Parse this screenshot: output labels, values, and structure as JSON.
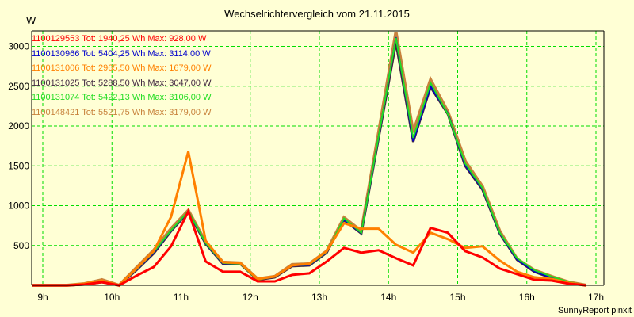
{
  "header": {
    "title": "Wechselrichtervergleich vom 21.11.2015",
    "y_unit": "W"
  },
  "footer": {
    "credit": "SunnyReport pinxit"
  },
  "colors": {
    "background": "#ffffd5",
    "grid": "#00dd00",
    "axis": "#000000"
  },
  "legend": [
    {
      "label": "1100129553 Tot: 1940,25 Wh Max: 928,00 W",
      "color": "#ff0000"
    },
    {
      "label": "1100130966 Tot: 5404,25 Wh Max: 3114,00 W",
      "color": "#0000cc"
    },
    {
      "label": "1100131006 Tot: 2965,50 Wh Max: 1679,00 W",
      "color": "#ff8000"
    },
    {
      "label": "1100131025 Tot: 5288,50 Wh Max: 3047,00 W",
      "color": "#402840"
    },
    {
      "label": "1100131074 Tot: 5422,13 Wh Max: 3106,00 W",
      "color": "#22dd22"
    },
    {
      "label": "1100148421 Tot: 5521,75 Wh Max: 3179,00 W",
      "color": "#c8823c"
    }
  ],
  "chart_data": {
    "type": "line",
    "title": "Wechselrichtervergleich vom 21.11.2015",
    "xlabel": "",
    "ylabel": "W",
    "x_ticks": [
      "9h",
      "10h",
      "11h",
      "12h",
      "13h",
      "14h",
      "15h",
      "16h",
      "17h"
    ],
    "y_ticks": [
      500,
      1000,
      1500,
      2000,
      2500,
      3000
    ],
    "ylim": [
      0,
      3200
    ],
    "xlim_hours": [
      8.87,
      17.0
    ],
    "grid": true,
    "legend_position": "top-left inside",
    "x": [
      "9:07",
      "9:22",
      "9:37",
      "9:52",
      "10:07",
      "10:22",
      "10:37",
      "10:52",
      "11:07",
      "11:22",
      "11:37",
      "11:52",
      "12:07",
      "12:22",
      "12:37",
      "12:52",
      "13:07",
      "13:22",
      "13:37",
      "13:52",
      "14:07",
      "14:22",
      "14:37",
      "14:52",
      "15:07",
      "15:22",
      "15:37",
      "15:52",
      "16:07",
      "16:22",
      "16:37",
      "16:52"
    ],
    "series": [
      {
        "name": "1100148421",
        "color": "#c8823c",
        "width": 4,
        "values": [
          0,
          0,
          20,
          70,
          0,
          220,
          440,
          710,
          940,
          540,
          290,
          280,
          80,
          110,
          260,
          270,
          430,
          850,
          680,
          1920,
          3179,
          1920,
          2580,
          2180,
          1560,
          1240,
          680,
          330,
          190,
          110,
          40,
          0
        ]
      },
      {
        "name": "1100131025",
        "color": "#402840",
        "width": 3,
        "values": [
          0,
          0,
          10,
          40,
          0,
          190,
          400,
          680,
          920,
          520,
          270,
          270,
          70,
          100,
          240,
          250,
          410,
          820,
          650,
          1850,
          3047,
          1800,
          2490,
          2150,
          1500,
          1200,
          650,
          320,
          170,
          90,
          30,
          0
        ]
      },
      {
        "name": "1100130966",
        "color": "#0000cc",
        "width": 2,
        "values": [
          0,
          0,
          10,
          40,
          0,
          195,
          410,
          685,
          925,
          525,
          275,
          270,
          75,
          105,
          245,
          255,
          415,
          825,
          655,
          1860,
          3114,
          1810,
          2500,
          2160,
          1510,
          1210,
          655,
          325,
          175,
          95,
          35,
          0
        ]
      },
      {
        "name": "1100131074",
        "color": "#22dd22",
        "width": 2,
        "values": [
          0,
          0,
          15,
          50,
          0,
          200,
          420,
          690,
          930,
          530,
          280,
          270,
          70,
          110,
          250,
          260,
          420,
          840,
          660,
          1870,
          3106,
          1850,
          2540,
          2150,
          1530,
          1220,
          660,
          340,
          190,
          110,
          40,
          0
        ]
      },
      {
        "name": "1100131006",
        "color": "#ff8000",
        "width": 3,
        "values": [
          0,
          0,
          20,
          60,
          0,
          210,
          430,
          860,
          1679,
          560,
          290,
          280,
          80,
          110,
          250,
          270,
          430,
          780,
          710,
          710,
          510,
          410,
          660,
          580,
          470,
          490,
          310,
          170,
          100,
          80,
          30,
          0
        ]
      },
      {
        "name": "1100129553",
        "color": "#ff0000",
        "width": 3,
        "values": [
          0,
          0,
          10,
          40,
          0,
          120,
          230,
          490,
          928,
          300,
          170,
          170,
          50,
          50,
          130,
          150,
          300,
          470,
          410,
          440,
          340,
          250,
          720,
          660,
          430,
          350,
          210,
          140,
          70,
          60,
          20,
          0
        ]
      }
    ]
  }
}
